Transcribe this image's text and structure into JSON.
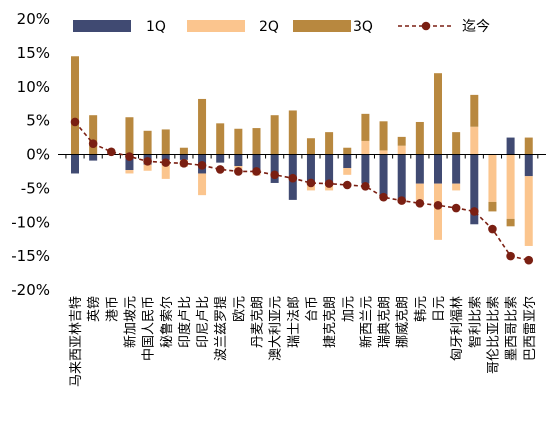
{
  "chart_data": {
    "type": "bar",
    "stacked": true,
    "categories": [
      "马来西亚林吉特",
      "英镑",
      "港币",
      "新加坡元",
      "中国人民币",
      "秘鲁索尔",
      "印度卢比",
      "印尼卢比",
      "波兰兹罗提",
      "欧元",
      "丹麦克朗",
      "澳大利亚元",
      "瑞士法郎",
      "台币",
      "捷克克朗",
      "加元",
      "新西兰元",
      "瑞典克朗",
      "挪威克朗",
      "韩元",
      "日元",
      "匈牙利福林",
      "智利比索",
      "哥伦比亚比索",
      "墨西哥比索",
      "巴西雷亚尔"
    ],
    "series": [
      {
        "name": "1Q",
        "type": "bar",
        "color": "#404A72",
        "values": [
          -2.8,
          -0.9,
          0.2,
          -2.3,
          -1.5,
          -0.8,
          -0.8,
          -2.8,
          -1.2,
          -1.7,
          -2.6,
          -4.2,
          -6.7,
          -4.4,
          -4.5,
          -2.0,
          -4.3,
          -6.0,
          -6.6,
          -4.3,
          -4.3,
          -4.3,
          -10.3,
          0.0,
          2.5,
          -3.2
        ]
      },
      {
        "name": "2Q",
        "type": "bar",
        "color": "#FBC58E",
        "values": [
          0.0,
          0.0,
          0.0,
          -0.5,
          -0.9,
          -2.8,
          -1.0,
          -3.2,
          0.0,
          -0.4,
          -0.5,
          0.0,
          0.0,
          -0.9,
          -0.8,
          -1.0,
          2.0,
          0.6,
          1.3,
          -2.5,
          -8.3,
          -1.0,
          4.1,
          -7.0,
          -9.5,
          -10.3
        ]
      },
      {
        "name": "3Q",
        "type": "bar",
        "color": "#B8883F",
        "values": [
          14.5,
          5.8,
          0.0,
          5.5,
          3.5,
          3.7,
          1.0,
          8.2,
          4.6,
          3.8,
          3.9,
          5.8,
          6.5,
          2.4,
          3.3,
          1.0,
          4.0,
          4.3,
          1.3,
          4.8,
          12.0,
          3.3,
          4.7,
          -1.4,
          -1.1,
          2.5
        ]
      },
      {
        "name": "迄今",
        "type": "line",
        "color": "#7A1F12",
        "values": [
          4.8,
          1.6,
          0.4,
          -0.3,
          -1.0,
          -1.2,
          -1.3,
          -1.6,
          -2.2,
          -2.5,
          -2.5,
          -3.0,
          -3.5,
          -4.2,
          -4.3,
          -4.5,
          -4.7,
          -6.3,
          -6.8,
          -7.2,
          -7.5,
          -7.9,
          -8.4,
          -11.0,
          -15.0,
          -15.6
        ]
      }
    ],
    "yticks": [
      "20%",
      "15%",
      "10%",
      "5%",
      "0%",
      "-5%",
      "-10%",
      "-15%",
      "-20%"
    ],
    "ylim": [
      -20,
      20
    ],
    "grid": false,
    "legend": "top"
  }
}
